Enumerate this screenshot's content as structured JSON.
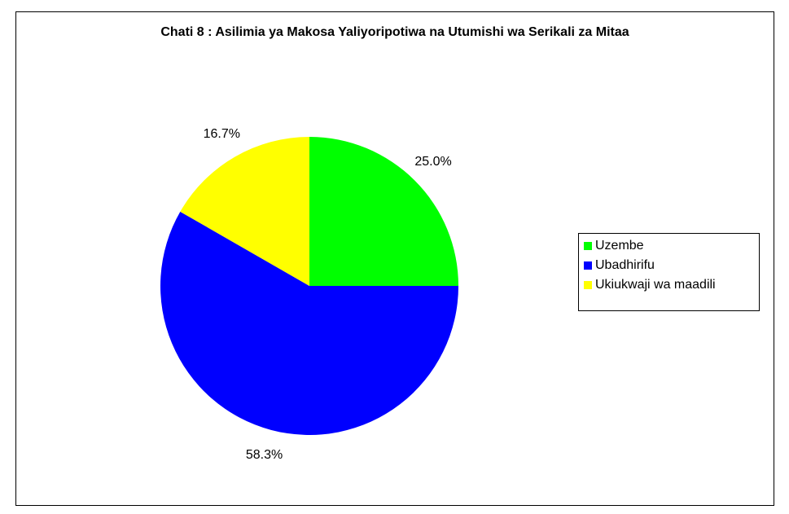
{
  "chart_data": {
    "type": "pie",
    "title": "Chati 8 : Asilimia ya Makosa Yaliyoripotiwa na Utumishi wa Serikali za Mitaa",
    "categories": [
      "Uzembe",
      "Ubadhirifu",
      "Ukiukwaji wa maadili"
    ],
    "values": [
      25.0,
      58.3,
      16.7
    ],
    "value_labels": [
      "25.0%",
      "58.3%",
      "16.7%"
    ],
    "colors": [
      "#00ff00",
      "#0000ff",
      "#ffff00"
    ],
    "legend": "right"
  }
}
